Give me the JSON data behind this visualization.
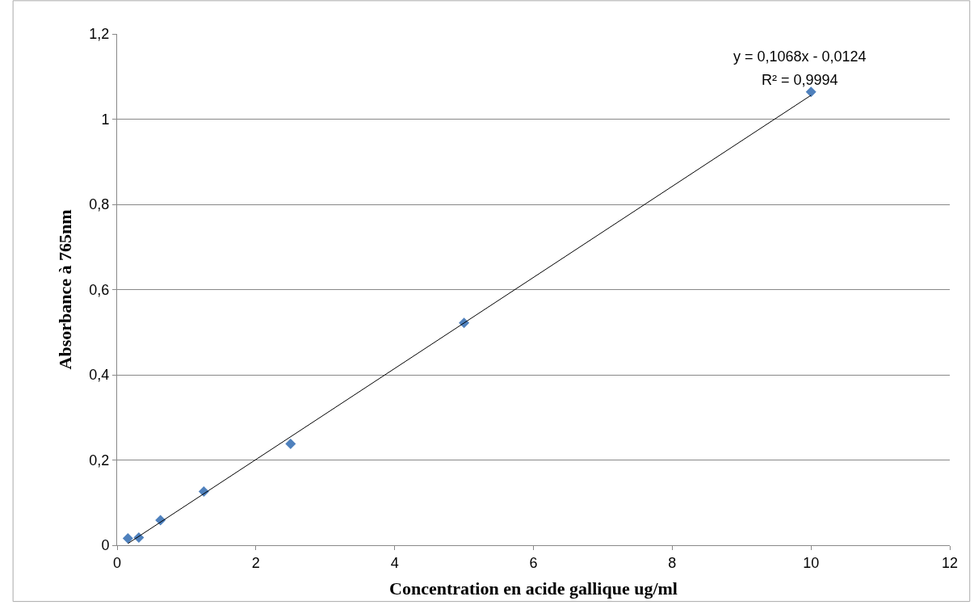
{
  "chart_data": {
    "type": "scatter",
    "xlabel": "Concentration en acide gallique ug/ml",
    "ylabel": "Absorbance à 765nm",
    "series": [
      {
        "color": "#4f81bd",
        "marker": "diamond",
        "x": [
          0.156,
          0.3125,
          0.625,
          1.25,
          2.5,
          5,
          10
        ],
        "values": [
          0.016,
          0.018,
          0.059,
          0.126,
          0.238,
          0.522,
          1.064
        ]
      },
      {
        "type": "line",
        "color": "#000000",
        "marker": "none",
        "x": [
          0.156,
          10
        ],
        "values": [
          0.004,
          1.056
        ]
      }
    ],
    "annotations": [
      "y = 0,1068x - 0,0124",
      "R² = 0,9994"
    ],
    "xlim": [
      0,
      12
    ],
    "xticks": [
      0,
      2,
      4,
      6,
      8,
      10,
      12
    ],
    "ylim": [
      0,
      1.2
    ],
    "yticks": [
      0,
      {
        "value": 0.2,
        "label": "0,2"
      },
      {
        "value": 0.4,
        "label": "0,4"
      },
      {
        "value": 0.6,
        "label": "0,6"
      },
      {
        "value": 0.8,
        "label": "0,8"
      },
      1,
      {
        "value": 1.2,
        "label": "1,2"
      }
    ],
    "grid": "y",
    "legend": false
  }
}
